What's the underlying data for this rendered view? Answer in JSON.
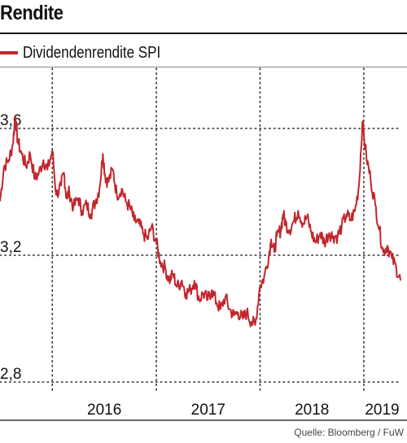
{
  "title": "Rendite",
  "source": "Quelle: Bloomberg / FuW",
  "colors": {
    "series": "#c0272d",
    "grid": "#333333"
  },
  "chart_data": {
    "type": "line",
    "title": "Rendite",
    "xlabel": "",
    "ylabel": "",
    "grid": true,
    "legend": "top-left",
    "ylim": [
      2.8,
      3.8
    ],
    "yticks": [
      "2,8",
      "3,2",
      "3,6"
    ],
    "ytick_values": [
      2.8,
      3.2,
      3.6
    ],
    "xlim": [
      "2015-07-01",
      "2019-05-10"
    ],
    "xtick_labels": [
      "2016",
      "2017",
      "2018",
      "2019"
    ],
    "year_boundaries": [
      "2016-01-01",
      "2017-01-01",
      "2018-01-01",
      "2019-01-01"
    ],
    "series": [
      {
        "name": "Dividendenrendite SPI",
        "x": [
          "2015-07-01",
          "2015-07-15",
          "2015-08-01",
          "2015-08-15",
          "2015-08-24",
          "2015-09-01",
          "2015-09-15",
          "2015-10-01",
          "2015-10-15",
          "2015-11-01",
          "2015-11-15",
          "2015-12-01",
          "2015-12-15",
          "2016-01-01",
          "2016-01-15",
          "2016-02-01",
          "2016-02-11",
          "2016-02-20",
          "2016-03-01",
          "2016-03-15",
          "2016-04-01",
          "2016-04-15",
          "2016-05-01",
          "2016-05-15",
          "2016-06-01",
          "2016-06-15",
          "2016-06-27",
          "2016-07-05",
          "2016-07-15",
          "2016-08-01",
          "2016-08-15",
          "2016-09-01",
          "2016-09-15",
          "2016-10-01",
          "2016-10-15",
          "2016-11-01",
          "2016-11-15",
          "2016-12-01",
          "2016-12-15",
          "2017-01-01",
          "2017-01-15",
          "2017-02-01",
          "2017-02-15",
          "2017-03-01",
          "2017-03-15",
          "2017-04-01",
          "2017-04-15",
          "2017-05-01",
          "2017-05-15",
          "2017-06-01",
          "2017-06-15",
          "2017-07-01",
          "2017-07-15",
          "2017-08-01",
          "2017-08-15",
          "2017-09-01",
          "2017-09-15",
          "2017-10-01",
          "2017-10-15",
          "2017-11-01",
          "2017-11-15",
          "2017-12-01",
          "2017-12-15",
          "2017-12-31",
          "2018-01-15",
          "2018-02-01",
          "2018-02-09",
          "2018-02-20",
          "2018-03-01",
          "2018-03-15",
          "2018-03-23",
          "2018-04-01",
          "2018-04-15",
          "2018-05-01",
          "2018-05-15",
          "2018-06-01",
          "2018-06-15",
          "2018-07-01",
          "2018-07-15",
          "2018-08-01",
          "2018-08-15",
          "2018-09-01",
          "2018-09-15",
          "2018-10-01",
          "2018-10-15",
          "2018-11-01",
          "2018-11-15",
          "2018-12-01",
          "2018-12-15",
          "2018-12-27",
          "2019-01-10",
          "2019-01-25",
          "2019-02-10",
          "2019-02-25",
          "2019-03-10",
          "2019-03-25",
          "2019-04-10",
          "2019-04-25",
          "2019-05-10"
        ],
        "y": [
          3.37,
          3.48,
          3.5,
          3.55,
          3.64,
          3.56,
          3.52,
          3.48,
          3.52,
          3.44,
          3.46,
          3.5,
          3.47,
          3.53,
          3.39,
          3.42,
          3.46,
          3.38,
          3.4,
          3.35,
          3.38,
          3.34,
          3.36,
          3.33,
          3.37,
          3.41,
          3.52,
          3.45,
          3.43,
          3.47,
          3.39,
          3.41,
          3.37,
          3.35,
          3.31,
          3.3,
          3.27,
          3.25,
          3.29,
          3.24,
          3.18,
          3.16,
          3.12,
          3.14,
          3.1,
          3.12,
          3.08,
          3.09,
          3.12,
          3.06,
          3.08,
          3.06,
          3.09,
          3.05,
          3.03,
          3.07,
          3.03,
          3.01,
          3.02,
          3.0,
          3.02,
          2.99,
          2.98,
          3.1,
          3.13,
          3.2,
          3.25,
          3.21,
          3.26,
          3.28,
          3.33,
          3.3,
          3.28,
          3.31,
          3.34,
          3.3,
          3.32,
          3.27,
          3.24,
          3.27,
          3.24,
          3.27,
          3.26,
          3.26,
          3.29,
          3.33,
          3.31,
          3.34,
          3.42,
          3.62,
          3.51,
          3.44,
          3.36,
          3.28,
          3.21,
          3.23,
          3.19,
          3.16,
          3.12
        ]
      }
    ]
  }
}
